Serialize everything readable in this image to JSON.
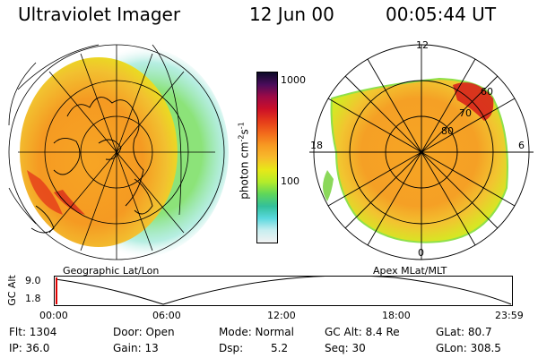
{
  "header": {
    "title": "Ultraviolet Imager",
    "date": "12 Jun 00",
    "time": "00:05:44 UT"
  },
  "colorbar": {
    "unit": "photon cm",
    "unit_sup1": "-2",
    "unit_mid": "s",
    "unit_sup2": "-1",
    "tick_high": "1000",
    "tick_low": "100",
    "colors": [
      "#f2f2f2",
      "#c8eef0",
      "#59d8de",
      "#33c09a",
      "#5fd65a",
      "#b4ec2a",
      "#e8e818",
      "#f7bb2b",
      "#f79a22",
      "#f26a1b",
      "#e53b1a",
      "#cc0f28",
      "#9e0a46",
      "#4a0c5b",
      "#0c0a28"
    ]
  },
  "geo_panel": {
    "caption": "Geographic Lat/Lon"
  },
  "apex_panel": {
    "caption": "Apex MLat/MLT",
    "mlt_top": "12",
    "mlt_left": "18",
    "mlt_right": "6",
    "mlt_bottom": "0",
    "lat_labels": [
      "60",
      "70",
      "80"
    ]
  },
  "altitude_plot": {
    "ylabel": "GC Alt",
    "y_max": "9.0",
    "y_min": "1.8",
    "x_ticks": [
      "00:00",
      "06:00",
      "12:00",
      "18:00",
      "23:59"
    ]
  },
  "status": {
    "flt": "Flt: 1304",
    "ip": "IP: 36.0",
    "door": "Door: Open",
    "gain": "Gain: 13",
    "mode": "Mode: Normal",
    "dsp_label": "Dsp:",
    "dsp_value": "5.2",
    "gcalt": "GC Alt: 8.4 Re",
    "seq": "Seq: 30",
    "glat": "GLat: 80.7",
    "glon": "GLon: 308.5"
  }
}
